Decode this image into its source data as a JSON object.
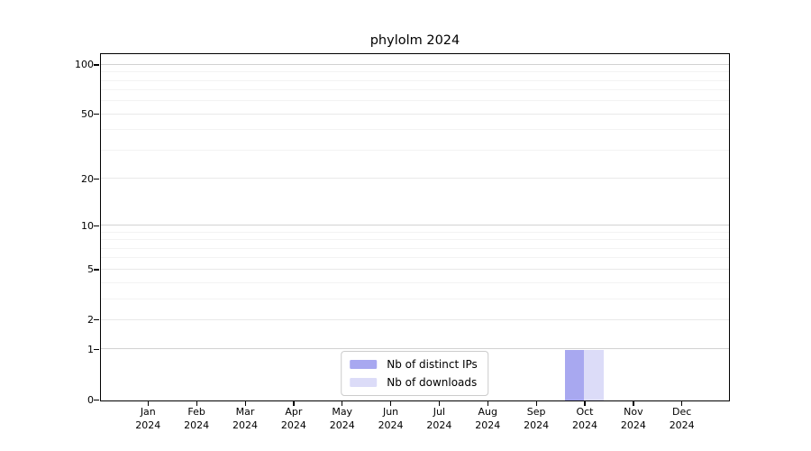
{
  "chart_data": {
    "type": "bar",
    "title": "phylolm 2024",
    "categories": [
      "Jan",
      "Feb",
      "Mar",
      "Apr",
      "May",
      "Jun",
      "Jul",
      "Aug",
      "Sep",
      "Oct",
      "Nov",
      "Dec"
    ],
    "x_year": "2024",
    "series": [
      {
        "name": "Nb of distinct IPs",
        "key": "distinct-ips",
        "color": "#a8a8f0",
        "values": [
          0,
          0,
          0,
          0,
          0,
          0,
          0,
          0,
          0,
          1,
          0,
          0
        ]
      },
      {
        "name": "Nb of downloads",
        "key": "downloads",
        "color": "#dcdcf8",
        "values": [
          0,
          0,
          0,
          0,
          0,
          0,
          0,
          0,
          0,
          1,
          0,
          0
        ]
      }
    ],
    "yscale": "log1p",
    "ylim": [
      0,
      115
    ],
    "y_major_ticks": [
      0,
      1,
      2,
      5,
      10,
      20,
      50,
      100
    ],
    "y_minor_ticks": [
      3,
      4,
      6,
      7,
      8,
      9,
      30,
      40,
      60,
      70,
      80,
      90
    ],
    "y_decade_gridlines": [
      1,
      10,
      100
    ],
    "grid": "horizontal",
    "legend_position": "lower center"
  },
  "colors": {
    "spine": "#000000",
    "grid_decade": "#d2d2d2",
    "grid_major": "#e9e9e9",
    "grid_minor": "#f3f3f3",
    "legend_border": "#cccccc",
    "text": "#000000"
  }
}
